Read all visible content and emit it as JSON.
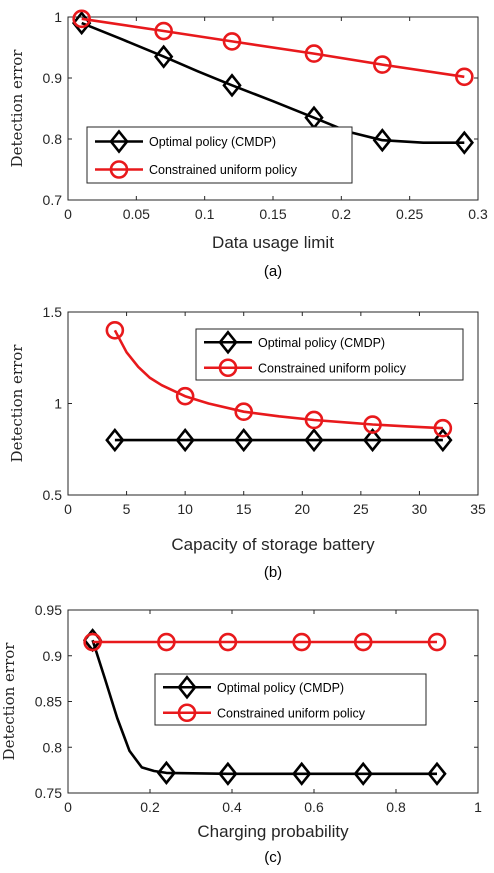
{
  "chart_data": [
    {
      "type": "line",
      "caption": "(a)",
      "xlabel": "Data usage limit",
      "ylabel": "Detection error",
      "xlim": [
        0,
        0.3
      ],
      "ylim": [
        0.7,
        1
      ],
      "xticks": [
        "0",
        "0.05",
        "0.1",
        "0.15",
        "0.2",
        "0.25",
        "0.3"
      ],
      "yticks": [
        "0.7",
        "0.8",
        "0.9",
        "1"
      ],
      "grid": false,
      "legend_position": "center-left",
      "series": [
        {
          "name": "Optimal policy (CMDP)",
          "color": "#000000",
          "marker": "diamond",
          "x": [
            0.01,
            0.07,
            0.12,
            0.18,
            0.23,
            0.29
          ],
          "y": [
            0.99,
            0.935,
            0.888,
            0.835,
            0.798,
            0.794
          ],
          "curve_x": [
            0.01,
            0.04,
            0.07,
            0.095,
            0.12,
            0.15,
            0.18,
            0.205,
            0.23,
            0.26,
            0.29
          ],
          "curve_y": [
            0.99,
            0.963,
            0.935,
            0.911,
            0.888,
            0.862,
            0.835,
            0.812,
            0.798,
            0.794,
            0.794
          ]
        },
        {
          "name": "Constrained uniform policy",
          "color": "#e8191c",
          "marker": "circle",
          "x": [
            0.01,
            0.07,
            0.12,
            0.18,
            0.23,
            0.29
          ],
          "y": [
            0.997,
            0.977,
            0.96,
            0.94,
            0.922,
            0.902
          ],
          "curve_x": [
            0.01,
            0.07,
            0.12,
            0.18,
            0.23,
            0.29
          ],
          "curve_y": [
            0.997,
            0.977,
            0.96,
            0.94,
            0.922,
            0.902
          ]
        }
      ]
    },
    {
      "type": "line",
      "caption": "(b)",
      "xlabel": "Capacity of storage battery",
      "ylabel": "Detection error",
      "xlim": [
        0,
        35
      ],
      "ylim": [
        0.5,
        1.5
      ],
      "xticks": [
        "0",
        "5",
        "10",
        "15",
        "20",
        "25",
        "30",
        "35"
      ],
      "yticks": [
        "0.5",
        "1",
        "1.5"
      ],
      "grid": false,
      "legend_position": "top-right",
      "series": [
        {
          "name": "Optimal policy (CMDP)",
          "color": "#000000",
          "marker": "diamond",
          "x": [
            4,
            10,
            15,
            21,
            26,
            32
          ],
          "y": [
            0.8,
            0.8,
            0.8,
            0.8,
            0.8,
            0.8
          ],
          "curve_x": [
            4,
            32
          ],
          "curve_y": [
            0.8,
            0.8
          ]
        },
        {
          "name": "Constrained uniform policy",
          "color": "#e8191c",
          "marker": "circle",
          "x": [
            4,
            10,
            15,
            21,
            26,
            32
          ],
          "y": [
            1.4,
            1.04,
            0.955,
            0.91,
            0.885,
            0.865
          ],
          "curve_x": [
            4,
            5,
            6,
            7,
            8,
            10,
            12,
            15,
            18,
            21,
            24,
            26,
            29,
            32
          ],
          "curve_y": [
            1.4,
            1.28,
            1.2,
            1.14,
            1.1,
            1.04,
            1.0,
            0.955,
            0.93,
            0.91,
            0.895,
            0.885,
            0.875,
            0.865
          ]
        }
      ]
    },
    {
      "type": "line",
      "caption": "(c)",
      "xlabel": "Charging probability",
      "ylabel": "Detection error",
      "xlim": [
        0,
        1
      ],
      "ylim": [
        0.75,
        0.95
      ],
      "xticks": [
        "0",
        "0.2",
        "0.4",
        "0.6",
        "0.8",
        "1"
      ],
      "yticks": [
        "0.75",
        "0.8",
        "0.85",
        "0.9",
        "0.95"
      ],
      "grid": false,
      "legend_position": "center-right",
      "series": [
        {
          "name": "Optimal policy (CMDP)",
          "color": "#000000",
          "marker": "diamond",
          "x": [
            0.06,
            0.24,
            0.39,
            0.57,
            0.72,
            0.9
          ],
          "y": [
            0.917,
            0.772,
            0.771,
            0.771,
            0.771,
            0.771
          ],
          "curve_x": [
            0.06,
            0.09,
            0.12,
            0.15,
            0.18,
            0.21,
            0.24,
            0.39,
            0.57,
            0.72,
            0.9
          ],
          "curve_y": [
            0.917,
            0.875,
            0.832,
            0.796,
            0.778,
            0.774,
            0.772,
            0.771,
            0.771,
            0.771,
            0.771
          ]
        },
        {
          "name": "Constrained uniform policy",
          "color": "#e8191c",
          "marker": "circle",
          "x": [
            0.06,
            0.24,
            0.39,
            0.57,
            0.72,
            0.9
          ],
          "y": [
            0.915,
            0.915,
            0.915,
            0.915,
            0.915,
            0.915
          ],
          "curve_x": [
            0.06,
            0.9
          ],
          "curve_y": [
            0.915,
            0.915
          ]
        }
      ]
    }
  ]
}
